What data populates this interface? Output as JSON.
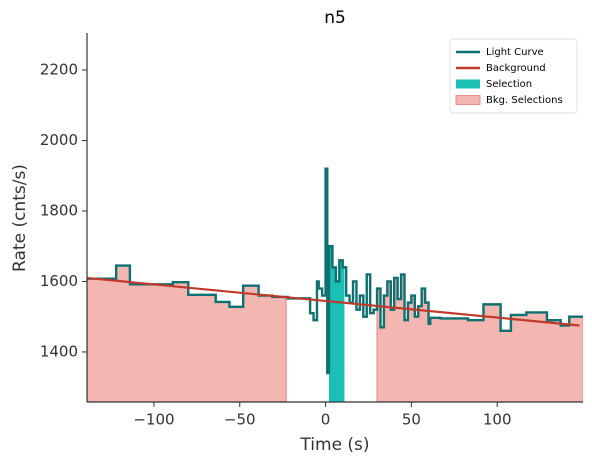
{
  "chart_data": {
    "type": "line",
    "title": "n5",
    "x_label": "Time (s)",
    "y_label": "Rate (cnts/s)",
    "xlim": [
      -139,
      150
    ],
    "ylim": [
      1258,
      2305
    ],
    "xticks": [
      {
        "value": -100,
        "label": "−100"
      },
      {
        "value": -50,
        "label": "−50"
      },
      0,
      50,
      100
    ],
    "yticks": [
      1400,
      1600,
      1800,
      2000,
      2200
    ],
    "legend": "upper right",
    "series": [
      {
        "name": "Light Curve",
        "color": "#0e7070",
        "style": "step",
        "x": [
          -139,
          -122,
          -114,
          -105,
          -89,
          -80,
          -64,
          -56,
          -48,
          -39,
          -31,
          -22,
          -9,
          -7,
          -5,
          -4,
          -2,
          0,
          1,
          2,
          4,
          6,
          8,
          10,
          12,
          14,
          16,
          18,
          20,
          22,
          24,
          26,
          28,
          30,
          32,
          34,
          36,
          38,
          40,
          42,
          44,
          46,
          48,
          50,
          52,
          54,
          56,
          58,
          60,
          61,
          67,
          83,
          92,
          102,
          108,
          117,
          129,
          137,
          142
        ],
        "values": [
          1608,
          1645,
          1592,
          1592,
          1598,
          1562,
          1542,
          1528,
          1588,
          1560,
          1556,
          1552,
          1510,
          1490,
          1600,
          1580,
          1560,
          1920,
          1340,
          1700,
          1640,
          1600,
          1660,
          1640,
          1560,
          1540,
          1600,
          1520,
          1560,
          1500,
          1620,
          1510,
          1520,
          1580,
          1470,
          1560,
          1600,
          1520,
          1610,
          1550,
          1620,
          1490,
          1540,
          1560,
          1500,
          1530,
          1580,
          1540,
          1480,
          1497,
          1495,
          1490,
          1535,
          1460,
          1505,
          1512,
          1490,
          1475,
          1500
        ]
      },
      {
        "name": "Background",
        "color": "#c0392b",
        "style": "line",
        "x": [
          -139,
          148
        ],
        "values": [
          1610,
          1475
        ]
      }
    ],
    "selections": [
      {
        "name": "Selection",
        "color": "#1abfb5",
        "intervals": [
          [
            2,
            11
          ]
        ]
      },
      {
        "name": "Bkg. Selections",
        "color": "#f4b6b0",
        "edge": "#e8908a",
        "intervals": [
          [
            -139,
            -23
          ],
          [
            30,
            150
          ]
        ]
      }
    ]
  }
}
